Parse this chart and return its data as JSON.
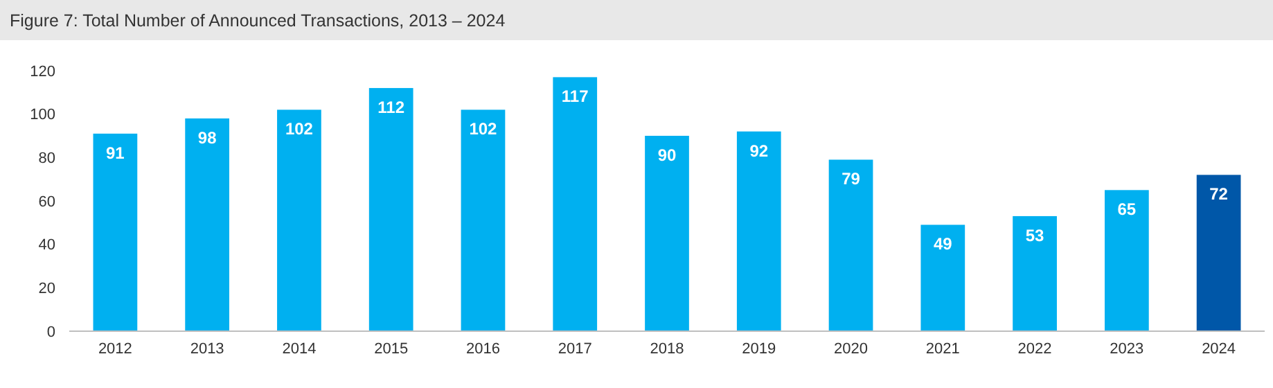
{
  "chart_data": {
    "type": "bar",
    "title": "Figure 7: Total Number of Announced Transactions, 2013 – 2024",
    "categories": [
      "2012",
      "2013",
      "2014",
      "2015",
      "2016",
      "2017",
      "2018",
      "2019",
      "2020",
      "2021",
      "2022",
      "2023",
      "2024"
    ],
    "values": [
      91,
      98,
      102,
      112,
      102,
      117,
      90,
      92,
      79,
      49,
      53,
      65,
      72
    ],
    "colors": [
      "#00b0f0",
      "#00b0f0",
      "#00b0f0",
      "#00b0f0",
      "#00b0f0",
      "#00b0f0",
      "#00b0f0",
      "#00b0f0",
      "#00b0f0",
      "#00b0f0",
      "#00b0f0",
      "#00b0f0",
      "#0057a8"
    ],
    "ylim": [
      0,
      120
    ],
    "yticks": [
      0,
      20,
      40,
      60,
      80,
      100,
      120
    ],
    "data_labels": true,
    "grid": false
  }
}
